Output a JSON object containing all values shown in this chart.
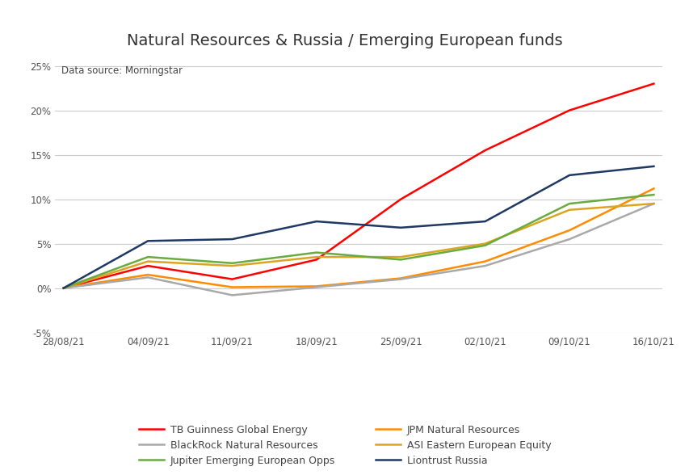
{
  "title": "Natural Resources & Russia / Emerging European funds",
  "subtitle": "Data source: Morningstar",
  "x_labels": [
    "28/08/21",
    "04/09/21",
    "11/09/21",
    "18/09/21",
    "25/09/21",
    "02/10/21",
    "09/10/21",
    "16/10/21"
  ],
  "series": {
    "TB Guinness Global Energy": {
      "color": "#FF0000",
      "values": [
        0.0,
        2.5,
        1.0,
        3.2,
        10.0,
        15.5,
        20.0,
        23.0
      ]
    },
    "JPM Natural Resources": {
      "color": "#FF8C00",
      "values": [
        0.0,
        1.5,
        0.1,
        0.2,
        1.1,
        3.0,
        6.5,
        11.2
      ]
    },
    "BlackRock Natural Resources": {
      "color": "#A9A9A9",
      "values": [
        0.0,
        1.2,
        -0.8,
        0.1,
        1.0,
        2.5,
        5.5,
        9.5
      ]
    },
    "ASI Eastern European Equity": {
      "color": "#DAA520",
      "values": [
        0.0,
        3.0,
        2.5,
        3.5,
        3.5,
        5.0,
        8.8,
        9.5
      ]
    },
    "Jupiter Emerging European Opps": {
      "color": "#6AAB3F",
      "values": [
        0.0,
        3.5,
        2.8,
        4.0,
        3.2,
        4.8,
        9.5,
        10.5
      ]
    },
    "Liontrust Russia": {
      "color": "#1F3864",
      "values": [
        0.0,
        5.3,
        5.5,
        7.5,
        6.8,
        7.5,
        12.7,
        13.7
      ]
    }
  },
  "ylim": [
    -5,
    26
  ],
  "yticks": [
    -5,
    0,
    5,
    10,
    15,
    20,
    25
  ],
  "background_color": "#FFFFFF",
  "grid_color": "#CCCCCC"
}
